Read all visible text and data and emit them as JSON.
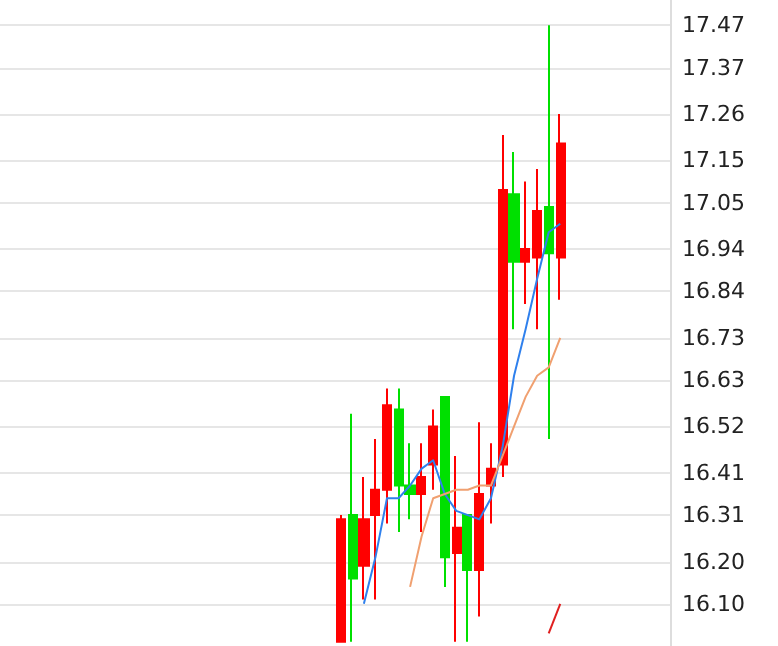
{
  "chart_data": {
    "type": "candlestick",
    "categories": [
      null,
      null,
      null,
      null,
      null,
      null,
      null,
      null,
      null,
      null,
      null,
      null,
      null,
      null,
      null,
      null,
      null,
      null,
      null,
      null,
      null,
      null,
      null,
      null,
      null,
      null,
      null,
      null,
      null,
      null,
      null,
      null,
      null,
      null,
      null,
      null,
      null,
      null,
      null,
      null,
      null,
      null,
      null,
      null,
      null,
      null,
      null,
      null,
      null,
      null,
      null,
      null,
      null,
      null,
      null,
      null,
      null,
      null
    ],
    "ohlc": [
      null,
      null,
      null,
      null,
      null,
      null,
      null,
      null,
      null,
      null,
      null,
      null,
      null,
      null,
      null,
      null,
      null,
      null,
      null,
      null,
      null,
      null,
      null,
      null,
      null,
      null,
      null,
      null,
      null,
      [
        16.01,
        16.31,
        16.01,
        16.3
      ],
      [
        16.31,
        16.55,
        16.01,
        16.16
      ],
      [
        16.19,
        16.4,
        16.11,
        16.3
      ],
      [
        16.31,
        16.49,
        16.11,
        16.37
      ],
      [
        16.37,
        16.61,
        16.29,
        16.57
      ],
      [
        16.56,
        16.61,
        16.27,
        16.38
      ],
      [
        16.38,
        16.48,
        16.3,
        16.36
      ],
      [
        16.36,
        16.48,
        16.27,
        16.4
      ],
      [
        16.43,
        16.56,
        16.37,
        16.52
      ],
      [
        16.59,
        16.59,
        16.14,
        16.21
      ],
      [
        16.22,
        16.45,
        16.01,
        16.28
      ],
      [
        16.31,
        16.31,
        16.01,
        16.18
      ],
      [
        16.18,
        16.53,
        16.07,
        16.36
      ],
      [
        16.38,
        16.48,
        16.29,
        16.42
      ],
      [
        16.43,
        17.21,
        16.4,
        17.08
      ],
      [
        17.07,
        17.17,
        16.75,
        16.91
      ],
      [
        16.91,
        17.1,
        16.81,
        16.94
      ],
      [
        16.92,
        17.13,
        16.75,
        17.03
      ],
      [
        17.04,
        17.47,
        16.49,
        16.93
      ],
      [
        16.92,
        17.26,
        16.82,
        17.19
      ],
      null,
      null,
      null,
      null,
      null,
      null,
      null,
      null,
      null
    ],
    "colors": [
      null,
      null,
      null,
      null,
      null,
      null,
      null,
      null,
      null,
      null,
      null,
      null,
      null,
      null,
      null,
      null,
      null,
      null,
      null,
      null,
      null,
      null,
      null,
      null,
      null,
      null,
      null,
      null,
      null,
      "#ff0000",
      "#00e000",
      "#ff0000",
      "#ff0000",
      "#ff0000",
      "#00e000",
      "#00e000",
      "#ff0000",
      "#ff0000",
      "#00e000",
      "#ff0000",
      "#00e000",
      "#ff0000",
      "#ff0000",
      "#ff0000",
      "#00e000",
      "#ff0000",
      "#ff0000",
      "#00e000",
      "#ff0000",
      null,
      null,
      null,
      null,
      null,
      null,
      null,
      null,
      null
    ],
    "series": [
      {
        "type": "line",
        "color": "#2f80ed",
        "values": [
          null,
          null,
          null,
          null,
          null,
          null,
          null,
          null,
          null,
          null,
          null,
          null,
          null,
          null,
          null,
          null,
          null,
          null,
          null,
          null,
          null,
          null,
          null,
          null,
          null,
          null,
          null,
          null,
          null,
          null,
          null,
          16.1,
          16.21,
          16.35,
          16.35,
          16.38,
          16.42,
          16.44,
          16.36,
          16.32,
          16.31,
          16.3,
          16.35,
          16.47,
          16.64,
          16.75,
          16.87,
          16.98,
          17.0,
          null,
          null,
          null,
          null,
          null,
          null,
          null,
          null,
          null
        ]
      },
      {
        "type": "line",
        "color": "#f0a070",
        "values": [
          null,
          null,
          null,
          null,
          null,
          null,
          null,
          null,
          null,
          null,
          null,
          null,
          null,
          null,
          null,
          null,
          null,
          null,
          null,
          null,
          null,
          null,
          null,
          null,
          null,
          null,
          null,
          null,
          null,
          null,
          null,
          null,
          null,
          null,
          null,
          16.14,
          16.26,
          16.35,
          16.36,
          16.37,
          16.37,
          16.38,
          16.38,
          16.45,
          16.52,
          16.59,
          16.64,
          16.66,
          16.73,
          null,
          null,
          null,
          null,
          null,
          null,
          null,
          null,
          null
        ]
      },
      {
        "type": "line",
        "color": "#e02020",
        "values": [
          null,
          null,
          null,
          null,
          null,
          null,
          null,
          null,
          null,
          null,
          null,
          null,
          null,
          null,
          null,
          null,
          null,
          null,
          null,
          null,
          null,
          null,
          null,
          null,
          null,
          null,
          null,
          null,
          null,
          null,
          null,
          null,
          null,
          null,
          null,
          null,
          null,
          null,
          null,
          null,
          null,
          null,
          null,
          null,
          null,
          null,
          null,
          16.03,
          16.1,
          null,
          null,
          null,
          null,
          null,
          null,
          null,
          null,
          null
        ]
      }
    ],
    "ylim": [
      16.0,
      17.53
    ],
    "yticks": [
      {
        "value": 16.1,
        "label": "16.10"
      },
      {
        "value": 16.2,
        "label": "16.20"
      },
      16.31,
      16.41,
      16.52,
      16.63,
      16.73,
      16.84,
      16.94,
      17.05,
      17.15,
      17.26,
      17.37,
      17.47
    ],
    "grid": "y",
    "line_style": "solid"
  }
}
